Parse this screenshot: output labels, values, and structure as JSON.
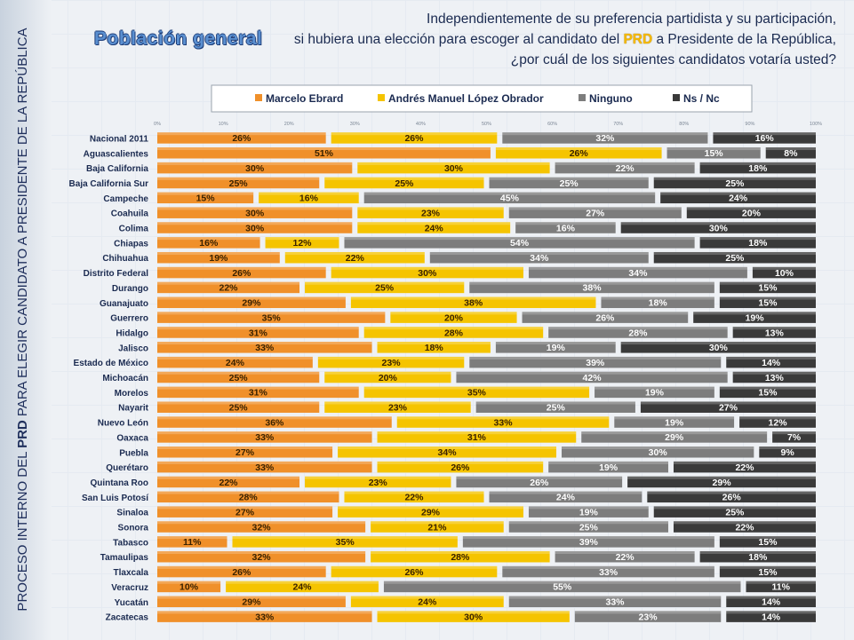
{
  "header": {
    "badge": "Población general",
    "question_line1": "Independientemente de su preferencia partidista y su participación,",
    "question_line2_pre": "si hubiera una elección para escoger al candidato del ",
    "question_line2_party": "PRD",
    "question_line2_post": " a Presidente de la República,",
    "question_line3": "¿por cuál de los siguientes candidatos votaría usted?"
  },
  "sidebar": {
    "pre": "PROCESO INTERNO DEL ",
    "bold": "PRD",
    "post": " PARA ELEGIR CANDIDATO A PRESIDENTE DE LA REPÚBLICA"
  },
  "colors": {
    "Marcelo Ebrard": "#f0902a",
    "Andrés Manuel López Obrador": "#f5c400",
    "Ninguno": "#7d7d7d",
    "Ns / Nc": "#3a3a3a"
  },
  "chart_data": {
    "type": "bar",
    "orientation": "horizontal",
    "stacked": true,
    "xlim": [
      0,
      100
    ],
    "x_ticks": [
      "0%",
      "10%",
      "20%",
      "30%",
      "40%",
      "50%",
      "60%",
      "70%",
      "80%",
      "90%",
      "100%"
    ],
    "legend_position": "top",
    "categories": [
      "Nacional 2011",
      "Aguascalientes",
      "Baja California",
      "Baja California Sur",
      "Campeche",
      "Coahuila",
      "Colima",
      "Chiapas",
      "Chihuahua",
      "Distrito Federal",
      "Durango",
      "Guanajuato",
      "Guerrero",
      "Hidalgo",
      "Jalisco",
      "Estado de México",
      "Michoacán",
      "Morelos",
      "Nayarit",
      "Nuevo León",
      "Oaxaca",
      "Puebla",
      "Querétaro",
      "Quintana Roo",
      "San Luis Potosí",
      "Sinaloa",
      "Sonora",
      "Tabasco",
      "Tamaulipas",
      "Tlaxcala",
      "Veracruz",
      "Yucatán",
      "Zacatecas"
    ],
    "series": [
      {
        "name": "Marcelo Ebrard",
        "values": [
          26,
          51,
          30,
          25,
          15,
          30,
          30,
          16,
          19,
          26,
          22,
          29,
          35,
          31,
          33,
          24,
          25,
          31,
          25,
          36,
          33,
          27,
          33,
          22,
          28,
          27,
          32,
          11,
          32,
          26,
          10,
          29,
          33
        ]
      },
      {
        "name": "Andrés Manuel López Obrador",
        "values": [
          26,
          26,
          30,
          25,
          16,
          23,
          24,
          12,
          22,
          30,
          25,
          38,
          20,
          28,
          18,
          23,
          20,
          35,
          23,
          33,
          31,
          34,
          26,
          23,
          22,
          29,
          21,
          35,
          28,
          26,
          24,
          24,
          30
        ]
      },
      {
        "name": "Ninguno",
        "values": [
          32,
          15,
          22,
          25,
          45,
          27,
          16,
          54,
          34,
          34,
          38,
          18,
          26,
          28,
          19,
          39,
          42,
          19,
          25,
          19,
          29,
          30,
          19,
          26,
          24,
          19,
          25,
          39,
          22,
          33,
          55,
          33,
          23
        ]
      },
      {
        "name": "Ns / Nc",
        "values": [
          16,
          8,
          18,
          25,
          24,
          20,
          30,
          18,
          25,
          10,
          15,
          15,
          19,
          13,
          30,
          14,
          13,
          15,
          27,
          12,
          7,
          9,
          22,
          29,
          26,
          25,
          22,
          15,
          18,
          15,
          11,
          14,
          14
        ]
      }
    ]
  }
}
